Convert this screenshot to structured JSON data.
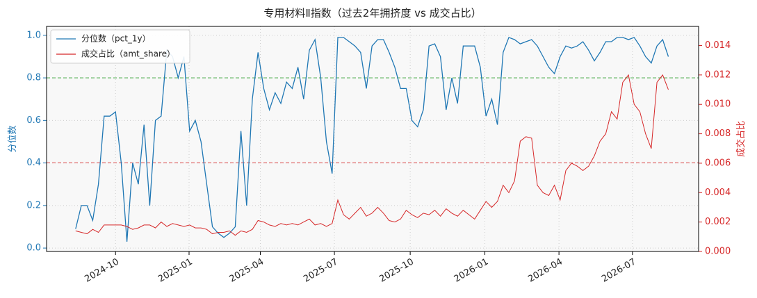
{
  "chart_data": {
    "type": "line",
    "title": "专用材料Ⅱ指数（过去2年拥挤度 vs 成交占比）",
    "ylabel": "分位数",
    "y2label": "成交占比",
    "xlim": [
      -5.1,
      109.3
    ],
    "xticks": [
      {
        "value": 7,
        "label": "2024-10"
      },
      {
        "value": 19.9,
        "label": "2025-01"
      },
      {
        "value": 32.4,
        "label": "2025-04"
      },
      {
        "value": 45.4,
        "label": "2025-07"
      },
      {
        "value": 58.7,
        "label": "2025-10"
      },
      {
        "value": 71.8,
        "label": "2026-01"
      },
      {
        "value": 84.8,
        "label": "2026-04"
      },
      {
        "value": 97.7,
        "label": "2026-07"
      }
    ],
    "ylim": [
      -0.016,
      1.042
    ],
    "yticks": [
      {
        "value": 0,
        "label": "0.0"
      },
      {
        "value": 0.2,
        "label": "0.2"
      },
      {
        "value": 0.4,
        "label": "0.4"
      },
      {
        "value": 0.6,
        "label": "0.6"
      },
      {
        "value": 0.8,
        "label": "0.8"
      },
      {
        "value": 1,
        "label": "1.0"
      }
    ],
    "y2lim": [
      0,
      0.0153
    ],
    "y2ticks": [
      {
        "value": 0,
        "label": "0.000"
      },
      {
        "value": 0.002,
        "label": "0.002"
      },
      {
        "value": 0.004,
        "label": "0.004"
      },
      {
        "value": 0.006,
        "label": "0.006"
      },
      {
        "value": 0.008,
        "label": "0.008"
      },
      {
        "value": 0.01,
        "label": "0.010"
      },
      {
        "value": 0.012,
        "label": "0.012"
      },
      {
        "value": 0.014,
        "label": "0.014"
      }
    ],
    "grid": true,
    "legend": "upper left",
    "hlines": [
      {
        "value": 0.8,
        "color": "#2ca02c"
      },
      {
        "value": 0.4,
        "color": "#d62728"
      }
    ],
    "series": [
      {
        "name": "分位数（pct_1y）",
        "color": "#1f77b4",
        "axis": "y",
        "values": [
          0.09,
          0.2,
          0.2,
          0.13,
          0.3,
          0.62,
          0.62,
          0.64,
          0.4,
          0.03,
          0.4,
          0.3,
          0.58,
          0.2,
          0.6,
          0.62,
          0.93,
          0.9,
          0.8,
          0.9,
          0.55,
          0.6,
          0.5,
          0.3,
          0.1,
          0.07,
          0.05,
          0.07,
          0.1,
          0.55,
          0.2,
          0.7,
          0.92,
          0.75,
          0.65,
          0.73,
          0.68,
          0.78,
          0.75,
          0.85,
          0.7,
          0.93,
          0.98,
          0.8,
          0.5,
          0.35,
          0.99,
          0.99,
          0.97,
          0.95,
          0.92,
          0.75,
          0.95,
          0.98,
          0.98,
          0.92,
          0.85,
          0.75,
          0.75,
          0.6,
          0.57,
          0.65,
          0.95,
          0.96,
          0.9,
          0.65,
          0.8,
          0.68,
          0.95,
          0.95,
          0.95,
          0.85,
          0.62,
          0.7,
          0.58,
          0.92,
          0.99,
          0.98,
          0.96,
          0.97,
          0.98,
          0.95,
          0.9,
          0.85,
          0.82,
          0.9,
          0.95,
          0.94,
          0.95,
          0.97,
          0.93,
          0.88,
          0.92,
          0.97,
          0.97,
          0.99,
          0.99,
          0.98,
          0.99,
          0.95,
          0.9,
          0.87,
          0.95,
          0.98,
          0.9
        ]
      },
      {
        "name": "成交占比（amt_share）",
        "color": "#d62728",
        "axis": "y2",
        "values": [
          0.0014,
          0.0013,
          0.0012,
          0.0015,
          0.0013,
          0.0018,
          0.0018,
          0.0018,
          0.0018,
          0.0017,
          0.0015,
          0.0016,
          0.0018,
          0.0018,
          0.0016,
          0.002,
          0.0017,
          0.0019,
          0.0018,
          0.0017,
          0.0018,
          0.0016,
          0.0016,
          0.0015,
          0.0012,
          0.0013,
          0.0013,
          0.0014,
          0.0011,
          0.0014,
          0.0013,
          0.0015,
          0.0021,
          0.002,
          0.0018,
          0.0017,
          0.0019,
          0.0018,
          0.0019,
          0.0018,
          0.002,
          0.0022,
          0.0018,
          0.0019,
          0.0017,
          0.0019,
          0.0035,
          0.0025,
          0.0022,
          0.0026,
          0.003,
          0.0024,
          0.0026,
          0.003,
          0.0026,
          0.0021,
          0.002,
          0.0022,
          0.0028,
          0.0025,
          0.0023,
          0.0026,
          0.0025,
          0.0028,
          0.0024,
          0.0029,
          0.0026,
          0.0024,
          0.0028,
          0.0025,
          0.0022,
          0.0028,
          0.0034,
          0.003,
          0.0034,
          0.0045,
          0.004,
          0.0048,
          0.0075,
          0.0078,
          0.0077,
          0.0045,
          0.004,
          0.0038,
          0.0045,
          0.0035,
          0.0055,
          0.006,
          0.0058,
          0.0055,
          0.0058,
          0.0065,
          0.0075,
          0.008,
          0.0095,
          0.009,
          0.0115,
          0.012,
          0.01,
          0.0095,
          0.008,
          0.007,
          0.0115,
          0.012,
          0.011
        ]
      }
    ]
  }
}
